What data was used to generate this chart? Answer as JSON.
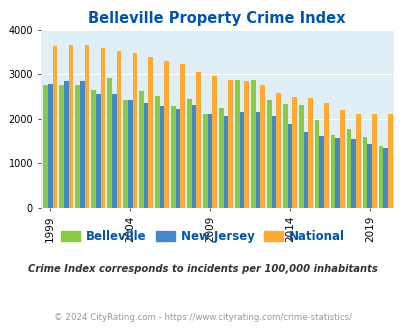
{
  "title": "Belleville Property Crime Index",
  "title_color": "#0055aa",
  "years": [
    1999,
    2000,
    2001,
    2002,
    2003,
    2004,
    2005,
    2006,
    2007,
    2008,
    2009,
    2010,
    2011,
    2012,
    2013,
    2014,
    2015,
    2016,
    2017,
    2018,
    2019,
    2020
  ],
  "belleville": [
    2750,
    2750,
    2760,
    2650,
    2920,
    2420,
    2620,
    2520,
    2280,
    2440,
    2110,
    2240,
    2860,
    2860,
    2420,
    2330,
    2320,
    1980,
    1640,
    1780,
    1600,
    1390
  ],
  "new_jersey": [
    2770,
    2840,
    2840,
    2550,
    2560,
    2430,
    2350,
    2290,
    2210,
    2310,
    2110,
    2070,
    2160,
    2150,
    2070,
    1890,
    1710,
    1620,
    1560,
    1540,
    1430,
    1350
  ],
  "national": [
    3640,
    3660,
    3650,
    3590,
    3530,
    3480,
    3380,
    3300,
    3220,
    3040,
    2960,
    2870,
    2850,
    2760,
    2590,
    2500,
    2470,
    2350,
    2200,
    2100,
    2100,
    2100
  ],
  "belleville_color": "#88cc44",
  "nj_color": "#4488cc",
  "national_color": "#ffaa33",
  "bg_color": "#e0eff5",
  "ylim": [
    0,
    4000
  ],
  "yticks": [
    0,
    1000,
    2000,
    3000,
    4000
  ],
  "xtick_positions": [
    0,
    5,
    10,
    15,
    20
  ],
  "xtick_labels": [
    "1999",
    "2004",
    "2009",
    "2014",
    "2019"
  ],
  "legend_labels": [
    "Belleville",
    "New Jersey",
    "National"
  ],
  "footnote": "Crime Index corresponds to incidents per 100,000 inhabitants",
  "copyright": "© 2024 CityRating.com - https://www.cityrating.com/crime-statistics/",
  "footnote_color": "#333333",
  "copyright_color": "#999999",
  "bar_width": 0.3
}
